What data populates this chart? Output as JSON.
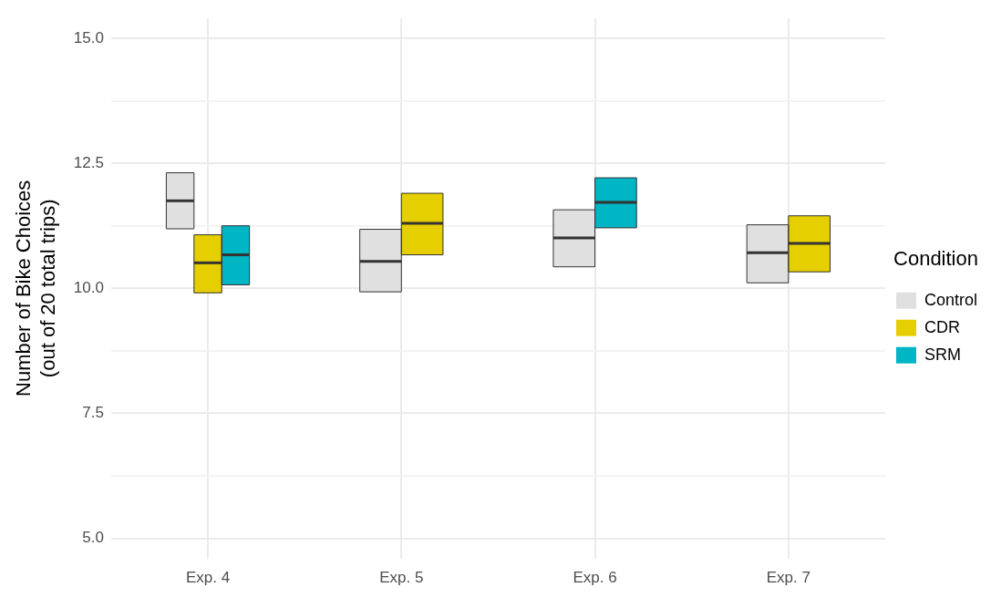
{
  "chart_data": {
    "type": "box",
    "ylabel": "Number of Bike Choices\n(out of 20 total trips)",
    "legend_title": "Condition",
    "legend": "right",
    "grid": true,
    "categories": [
      "Exp. 4",
      "Exp. 5",
      "Exp. 6",
      "Exp. 7"
    ],
    "ylim": [
      4.6,
      15.4
    ],
    "yticks": [
      {
        "value": 5,
        "label": "5.0"
      },
      {
        "value": 6.25,
        "label": null
      },
      {
        "value": 7.5,
        "label": "7.5"
      },
      {
        "value": 8.75,
        "label": null
      },
      {
        "value": 10,
        "label": "10.0"
      },
      {
        "value": 11.25,
        "label": null
      },
      {
        "value": 12.5,
        "label": "12.5"
      },
      {
        "value": 13.75,
        "label": null
      },
      {
        "value": 15,
        "label": "15.0"
      }
    ],
    "series": [
      {
        "name": "Control",
        "color": "#e0e0e0",
        "boxes": [
          {
            "low": 11.19,
            "q1": 11.19,
            "median": 11.75,
            "q3": 12.31,
            "high": 12.31
          },
          {
            "low": 9.93,
            "q1": 9.93,
            "median": 10.54,
            "q3": 11.18,
            "high": 11.18
          },
          {
            "low": 10.43,
            "q1": 10.43,
            "median": 11.01,
            "q3": 11.57,
            "high": 11.57
          },
          {
            "low": 10.11,
            "q1": 10.11,
            "median": 10.71,
            "q3": 11.27,
            "high": 11.27
          }
        ]
      },
      {
        "name": "CDR",
        "color": "#e6cf00",
        "boxes": [
          {
            "low": 9.91,
            "q1": 9.91,
            "median": 10.51,
            "q3": 11.07,
            "high": 11.07
          },
          {
            "low": 10.67,
            "q1": 10.67,
            "median": 11.3,
            "q3": 11.9,
            "high": 11.9
          },
          null,
          {
            "low": 10.33,
            "q1": 10.33,
            "median": 10.9,
            "q3": 11.45,
            "high": 11.45
          }
        ]
      },
      {
        "name": "SRM",
        "color": "#00b5c4",
        "boxes": [
          {
            "low": 10.07,
            "q1": 10.07,
            "median": 10.67,
            "q3": 11.25,
            "high": 11.25
          },
          null,
          {
            "low": 11.21,
            "q1": 11.21,
            "median": 11.72,
            "q3": 12.21,
            "high": 12.21
          },
          null
        ]
      }
    ]
  }
}
